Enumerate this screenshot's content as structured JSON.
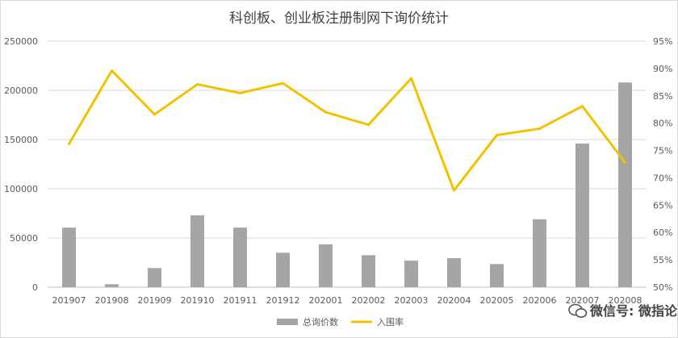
{
  "chart_data": {
    "type": "bar+line",
    "title": "科创板、创业板注册制网下询价统计",
    "categories": [
      "201907",
      "201908",
      "201909",
      "201910",
      "201911",
      "201912",
      "202001",
      "202002",
      "202003",
      "202004",
      "202005",
      "202006",
      "202007",
      "202008"
    ],
    "series": [
      {
        "name": "总询价数",
        "type": "bar",
        "axis": "left",
        "color": "#a5a5a5",
        "values": [
          60500,
          3000,
          19500,
          73000,
          60500,
          35000,
          43500,
          32500,
          27000,
          29500,
          23500,
          69000,
          146000,
          208000
        ]
      },
      {
        "name": "入围率",
        "type": "line",
        "axis": "right",
        "color": "#f2c200",
        "values": [
          76.2,
          89.6,
          81.6,
          87.1,
          85.5,
          87.3,
          82.0,
          79.7,
          88.2,
          67.7,
          77.8,
          79.0,
          83.1,
          72.8
        ]
      }
    ],
    "y_left": {
      "min": 0,
      "max": 250000,
      "ticks": [
        "0",
        "50000",
        "100000",
        "150000",
        "200000",
        "250000"
      ]
    },
    "y_right": {
      "min": 50,
      "max": 95,
      "unit": "%",
      "ticks": [
        "50%",
        "55%",
        "60%",
        "65%",
        "70%",
        "75%",
        "80%",
        "85%",
        "90%",
        "95%"
      ]
    },
    "grid": true,
    "legend_position": "bottom"
  },
  "watermark": {
    "text": "微信号: 微指论基"
  }
}
